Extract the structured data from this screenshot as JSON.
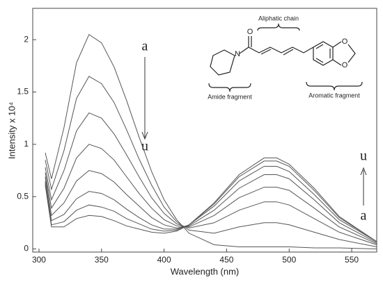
{
  "chart_data": {
    "type": "line",
    "xlabel": "Wavelength (nm)",
    "ylabel": "Intensity x 10⁴",
    "x": [
      305,
      310,
      320,
      330,
      340,
      350,
      360,
      370,
      380,
      390,
      400,
      410,
      420,
      440,
      460,
      480,
      490,
      500,
      520,
      540,
      570
    ],
    "color": "#555555",
    "series": [
      {
        "values": [
          0.92,
          0.67,
          1.16,
          1.78,
          2.05,
          1.97,
          1.74,
          1.42,
          1.07,
          0.74,
          0.47,
          0.28,
          0.15,
          0.04,
          0.02,
          0.02,
          0.02,
          0.02,
          0.01,
          0.01,
          0
        ]
      },
      {
        "values": [
          0.85,
          0.57,
          0.94,
          1.44,
          1.65,
          1.58,
          1.4,
          1.14,
          0.86,
          0.61,
          0.4,
          0.26,
          0.18,
          0.15,
          0.21,
          0.25,
          0.25,
          0.23,
          0.16,
          0.09,
          0.02
        ]
      },
      {
        "values": [
          0.78,
          0.47,
          0.75,
          1.13,
          1.3,
          1.25,
          1.1,
          0.9,
          0.69,
          0.49,
          0.34,
          0.24,
          0.2,
          0.25,
          0.37,
          0.45,
          0.45,
          0.42,
          0.29,
          0.16,
          0.04
        ]
      },
      {
        "values": [
          0.73,
          0.39,
          0.58,
          0.87,
          1.0,
          0.96,
          0.85,
          0.69,
          0.53,
          0.39,
          0.28,
          0.22,
          0.21,
          0.32,
          0.49,
          0.59,
          0.59,
          0.56,
          0.39,
          0.21,
          0.05
        ]
      },
      {
        "values": [
          0.69,
          0.32,
          0.44,
          0.65,
          0.75,
          0.72,
          0.64,
          0.52,
          0.41,
          0.3,
          0.23,
          0.2,
          0.22,
          0.37,
          0.58,
          0.71,
          0.71,
          0.67,
          0.47,
          0.25,
          0.06
        ]
      },
      {
        "values": [
          0.65,
          0.27,
          0.33,
          0.48,
          0.55,
          0.53,
          0.47,
          0.38,
          0.3,
          0.23,
          0.19,
          0.19,
          0.23,
          0.41,
          0.65,
          0.79,
          0.79,
          0.74,
          0.52,
          0.28,
          0.07
        ]
      },
      {
        "values": [
          0.63,
          0.23,
          0.26,
          0.37,
          0.42,
          0.4,
          0.36,
          0.29,
          0.24,
          0.19,
          0.17,
          0.18,
          0.23,
          0.43,
          0.69,
          0.84,
          0.84,
          0.79,
          0.56,
          0.3,
          0.07
        ]
      },
      {
        "values": [
          0.61,
          0.21,
          0.21,
          0.29,
          0.32,
          0.31,
          0.27,
          0.22,
          0.19,
          0.16,
          0.15,
          0.17,
          0.23,
          0.44,
          0.71,
          0.87,
          0.87,
          0.81,
          0.58,
          0.31,
          0.07
        ]
      }
    ],
    "xlim": [
      295,
      570
    ],
    "xticks": [
      300,
      350,
      400,
      450,
      500,
      550
    ],
    "ylim": [
      -0.03,
      2.3
    ],
    "yticks": [
      0,
      0.5,
      1,
      1.5,
      2
    ],
    "annotations": [
      "a",
      "u",
      "u",
      "a"
    ],
    "inset_labels": [
      "Aliphatic chain",
      "Amide fragment",
      "Aromatic fragment",
      "O",
      "N",
      "O",
      "O"
    ]
  }
}
